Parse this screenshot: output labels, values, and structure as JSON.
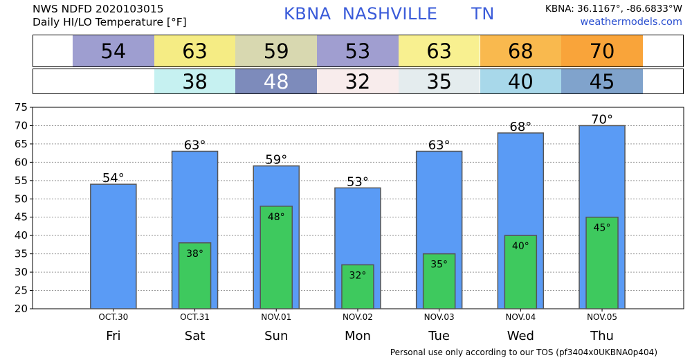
{
  "header": {
    "line1": "NWS NDFD 2020103015",
    "line2": "Daily HI/LO Temperature [°F]",
    "station": "KBNA  NASHVILLE      TN",
    "coords": "KBNA: 36.1167°, -86.6833°W",
    "site": "weathermodels.com"
  },
  "strips": {
    "hi": [
      {
        "value": "54",
        "color": "#9e9ed0"
      },
      {
        "value": "63",
        "color": "#f5ec84"
      },
      {
        "value": "59",
        "color": "#d8d8b0"
      },
      {
        "value": "53",
        "color": "#a09ed0"
      },
      {
        "value": "63",
        "color": "#f8f090"
      },
      {
        "value": "68",
        "color": "#f9b94e"
      },
      {
        "value": "70",
        "color": "#f9a43a"
      }
    ],
    "lo": [
      {
        "value": "",
        "color": "#ffffff"
      },
      {
        "value": "38",
        "color": "#c6f1f1"
      },
      {
        "value": "48",
        "color": "#7d8bbb",
        "text_color": "#ffffff"
      },
      {
        "value": "32",
        "color": "#f8ecec"
      },
      {
        "value": "35",
        "color": "#e4ecee"
      },
      {
        "value": "40",
        "color": "#a8d8ea"
      },
      {
        "value": "45",
        "color": "#80a3cc"
      }
    ]
  },
  "chart_data": {
    "type": "bar",
    "categories": [
      "Fri",
      "Sat",
      "Sun",
      "Mon",
      "Tue",
      "Wed",
      "Thu"
    ],
    "dates": [
      "OCT.30",
      "OCT.31",
      "NOV.01",
      "NOV.02",
      "NOV.03",
      "NOV.04",
      "NOV.05"
    ],
    "series": [
      {
        "values": [
          54,
          63,
          59,
          53,
          63,
          68,
          70
        ],
        "color": "#5a9bf5"
      },
      {
        "values": [
          null,
          38,
          48,
          32,
          35,
          40,
          45
        ],
        "color": "#3ec95e"
      }
    ],
    "hi_labels": [
      "54°",
      "63°",
      "59°",
      "53°",
      "63°",
      "68°",
      "70°"
    ],
    "lo_labels": [
      "",
      "38°",
      "48°",
      "32°",
      "35°",
      "40°",
      "45°"
    ],
    "ylim": [
      20,
      75
    ],
    "yticks": [
      20,
      25,
      30,
      35,
      40,
      45,
      50,
      55,
      60,
      65,
      70,
      75
    ],
    "grid": true
  },
  "footer": "Personal use only according to our TOS (pf3404x0UKBNA0p404)"
}
